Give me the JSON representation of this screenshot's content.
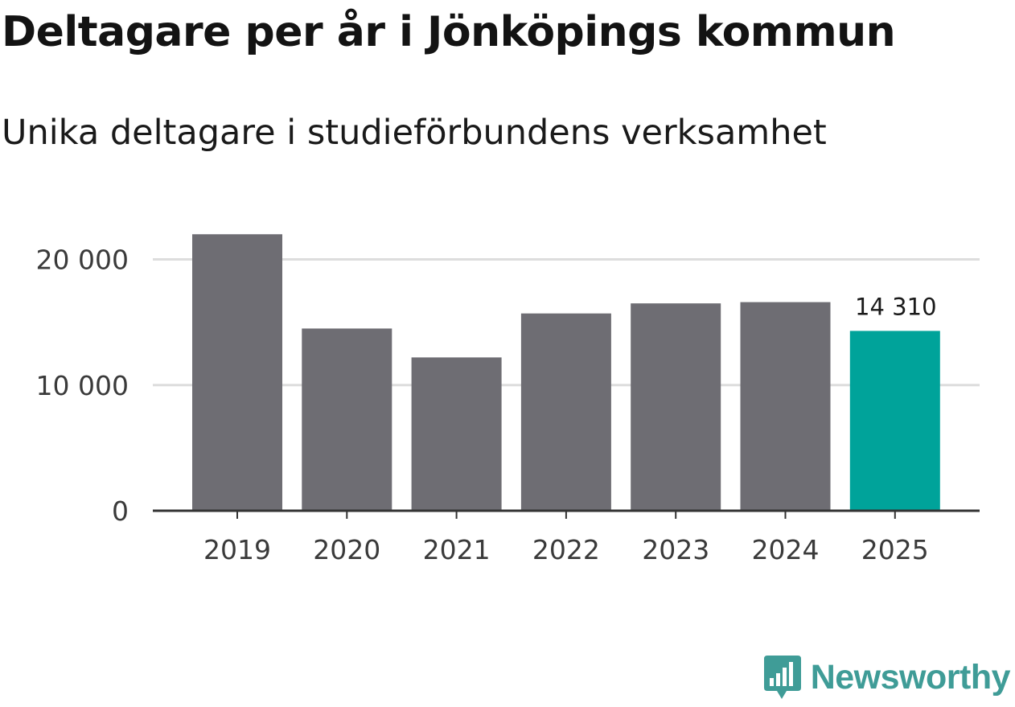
{
  "chart_data": {
    "type": "bar",
    "title": "Deltagare per år i Jönköpings kommun",
    "subtitle": "Unika deltagare i studieförbundens verksamhet",
    "categories": [
      "2019",
      "2020",
      "2021",
      "2022",
      "2023",
      "2024",
      "2025"
    ],
    "values": [
      22000,
      14500,
      12200,
      15700,
      16500,
      16600,
      14310
    ],
    "highlight_index": 6,
    "highlight_label": "14 310",
    "ylim": [
      0,
      24000
    ],
    "yticks": [
      0,
      10000,
      20000
    ],
    "ytick_labels": [
      "0",
      "10 000",
      "20 000"
    ],
    "grid": true,
    "colors": {
      "bar": "#6e6d73",
      "highlight": "#00a39a",
      "grid": "#dddddd",
      "axis": "#333333"
    }
  },
  "brand": {
    "name": "Newsworthy",
    "icon": "chart-bubble-icon",
    "color": "#3f9c97"
  }
}
